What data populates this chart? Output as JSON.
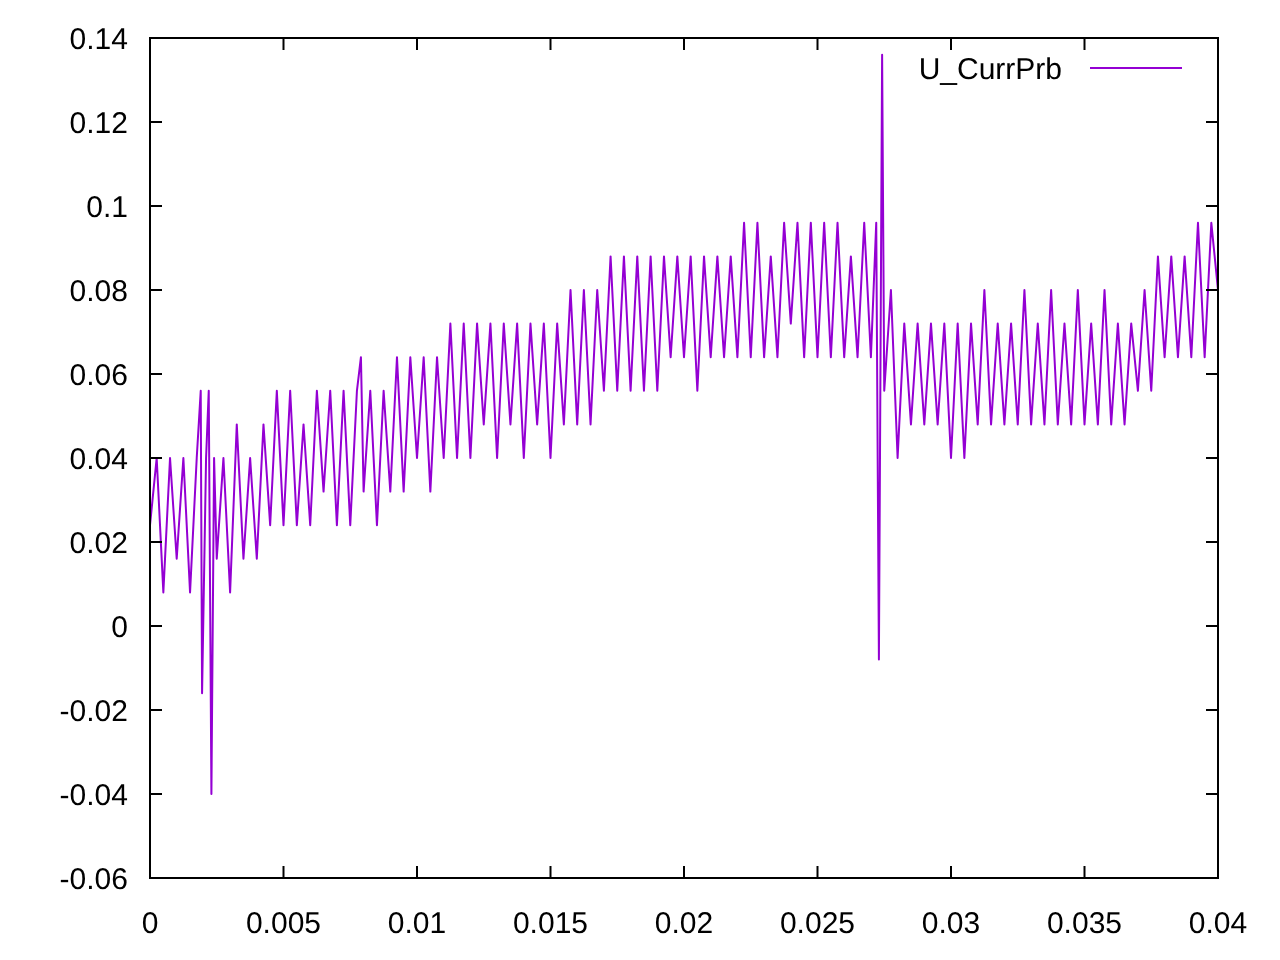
{
  "chart_data": {
    "type": "line",
    "x": [
      0,
      0.00025,
      0.0005,
      0.00075,
      0.001,
      0.00125,
      0.0015,
      0.00175,
      0.0019,
      0.00195,
      0.0021,
      0.0022,
      0.0023,
      0.0024,
      0.0025,
      0.00275,
      0.003,
      0.00325,
      0.0035,
      0.00375,
      0.004,
      0.00425,
      0.0045,
      0.00475,
      0.005,
      0.00525,
      0.0055,
      0.00575,
      0.006,
      0.00625,
      0.0065,
      0.00675,
      0.007,
      0.00725,
      0.0075,
      0.00775,
      0.0079,
      0.008,
      0.00825,
      0.0085,
      0.00875,
      0.009,
      0.00925,
      0.0095,
      0.00975,
      0.01,
      0.01025,
      0.0105,
      0.01075,
      0.011,
      0.01125,
      0.0115,
      0.01175,
      0.012,
      0.01225,
      0.0125,
      0.01275,
      0.013,
      0.01325,
      0.0135,
      0.01375,
      0.014,
      0.01425,
      0.0145,
      0.01475,
      0.015,
      0.01525,
      0.0155,
      0.01575,
      0.016,
      0.01625,
      0.0165,
      0.01675,
      0.017,
      0.01725,
      0.0175,
      0.01775,
      0.018,
      0.01825,
      0.0185,
      0.01875,
      0.019,
      0.01925,
      0.0195,
      0.01975,
      0.02,
      0.02025,
      0.0205,
      0.02075,
      0.021,
      0.02125,
      0.0215,
      0.02175,
      0.022,
      0.02225,
      0.0225,
      0.02275,
      0.023,
      0.02325,
      0.0235,
      0.02375,
      0.024,
      0.02425,
      0.0245,
      0.02475,
      0.025,
      0.02525,
      0.0255,
      0.02575,
      0.026,
      0.02625,
      0.0265,
      0.02675,
      0.027,
      0.0272,
      0.0273,
      0.02742,
      0.0275,
      0.02775,
      0.028,
      0.02825,
      0.0285,
      0.02875,
      0.029,
      0.02925,
      0.0295,
      0.02975,
      0.03,
      0.03025,
      0.0305,
      0.03075,
      0.031,
      0.03125,
      0.0315,
      0.03175,
      0.032,
      0.03225,
      0.0325,
      0.03275,
      0.033,
      0.03325,
      0.0335,
      0.03375,
      0.034,
      0.03425,
      0.0345,
      0.03475,
      0.035,
      0.03525,
      0.0355,
      0.03575,
      0.036,
      0.03625,
      0.0365,
      0.03675,
      0.037,
      0.03725,
      0.0375,
      0.03775,
      0.038,
      0.03825,
      0.0385,
      0.03875,
      0.039,
      0.03925,
      0.0395,
      0.03975,
      0.04
    ],
    "series": [
      {
        "name": "U_CurrPrb",
        "color": "#9400d3",
        "values": [
          0.024,
          0.04,
          0.008,
          0.04,
          0.016,
          0.04,
          0.008,
          0.04,
          0.056,
          -0.016,
          0.04,
          0.056,
          -0.04,
          0.04,
          0.016,
          0.04,
          0.008,
          0.048,
          0.016,
          0.04,
          0.016,
          0.048,
          0.024,
          0.056,
          0.024,
          0.056,
          0.024,
          0.048,
          0.024,
          0.056,
          0.032,
          0.056,
          0.024,
          0.056,
          0.024,
          0.056,
          0.064,
          0.032,
          0.056,
          0.024,
          0.056,
          0.032,
          0.064,
          0.032,
          0.064,
          0.04,
          0.064,
          0.032,
          0.064,
          0.04,
          0.072,
          0.04,
          0.072,
          0.04,
          0.072,
          0.048,
          0.072,
          0.04,
          0.072,
          0.048,
          0.072,
          0.04,
          0.072,
          0.048,
          0.072,
          0.04,
          0.072,
          0.048,
          0.08,
          0.048,
          0.08,
          0.048,
          0.08,
          0.056,
          0.088,
          0.056,
          0.088,
          0.056,
          0.088,
          0.056,
          0.088,
          0.056,
          0.088,
          0.064,
          0.088,
          0.064,
          0.088,
          0.056,
          0.088,
          0.064,
          0.088,
          0.064,
          0.088,
          0.064,
          0.096,
          0.064,
          0.096,
          0.064,
          0.088,
          0.064,
          0.096,
          0.072,
          0.096,
          0.064,
          0.096,
          0.064,
          0.096,
          0.064,
          0.096,
          0.064,
          0.088,
          0.064,
          0.096,
          0.064,
          0.096,
          -0.008,
          0.136,
          0.056,
          0.08,
          0.04,
          0.072,
          0.048,
          0.072,
          0.048,
          0.072,
          0.048,
          0.072,
          0.04,
          0.072,
          0.04,
          0.072,
          0.048,
          0.08,
          0.048,
          0.072,
          0.048,
          0.072,
          0.048,
          0.08,
          0.048,
          0.072,
          0.048,
          0.08,
          0.048,
          0.072,
          0.048,
          0.08,
          0.048,
          0.072,
          0.048,
          0.08,
          0.048,
          0.072,
          0.048,
          0.072,
          0.056,
          0.08,
          0.056,
          0.088,
          0.064,
          0.088,
          0.064,
          0.088,
          0.064,
          0.096,
          0.064,
          0.096,
          0.08
        ]
      }
    ],
    "xlim": [
      0,
      0.04
    ],
    "ylim": [
      -0.06,
      0.14
    ],
    "xticks": [
      0,
      0.005,
      0.01,
      0.015,
      0.02,
      0.025,
      0.03,
      0.035,
      0.04
    ],
    "yticks": [
      -0.06,
      -0.04,
      -0.02,
      0,
      0.02,
      0.04,
      0.06,
      0.08,
      0.1,
      0.12,
      0.14
    ],
    "legend": "top right"
  }
}
